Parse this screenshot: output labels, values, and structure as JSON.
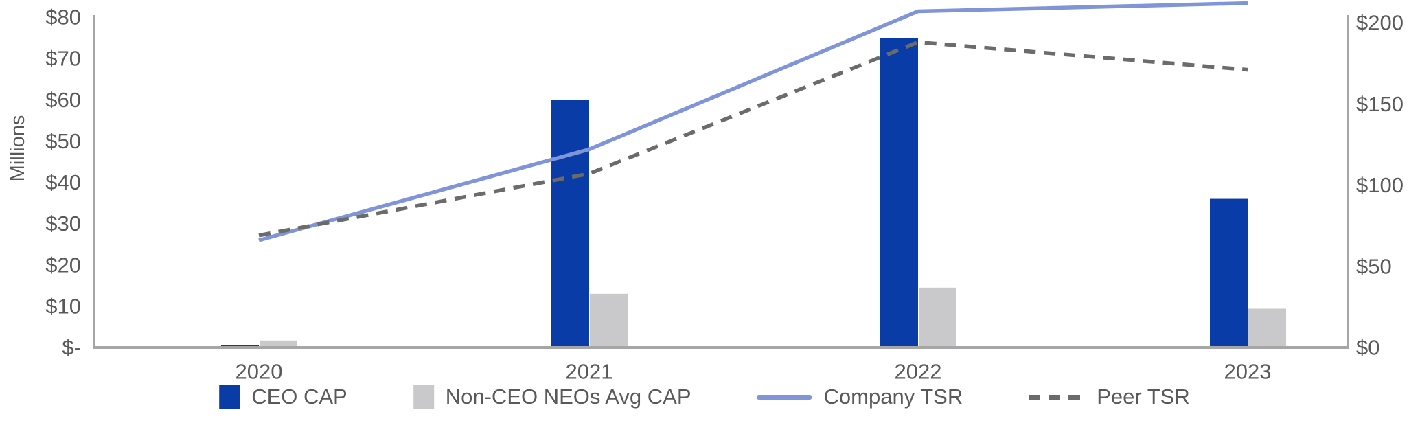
{
  "colors": {
    "ceo_bar": "#0A3CA8",
    "neo_bar": "#C9C9CB",
    "company_line": "#8094D8",
    "peer_line": "#6B6B6B",
    "axis": "#A6A6A6",
    "text": "#595959"
  },
  "chart_data": {
    "type": "combo-bar-line",
    "title": "",
    "categories": [
      "2020",
      "2021",
      "2022",
      "2023"
    ],
    "bar_series": [
      {
        "name": "CEO CAP",
        "axis": "left",
        "values": [
          0.5,
          60,
          75,
          36
        ]
      },
      {
        "name": "Non-CEO NEOs Avg CAP",
        "axis": "left",
        "values": [
          1.7,
          13,
          14.5,
          9.4
        ]
      }
    ],
    "line_series": [
      {
        "name": "Company TSR",
        "axis": "right",
        "style": "solid",
        "values": [
          66,
          122,
          207,
          212
        ]
      },
      {
        "name": "Peer TSR",
        "axis": "right",
        "style": "dashed",
        "values": [
          69,
          107,
          188,
          171
        ]
      }
    ],
    "left_axis": {
      "title": "Millions",
      "min": 0,
      "max": 80,
      "tick_step": 10,
      "tick_labels": [
        "$80",
        "$70",
        "$60",
        "$50",
        "$40",
        "$30",
        "$20",
        "$10",
        "$-"
      ]
    },
    "right_axis": {
      "min": 0,
      "max": 200,
      "tick_step": 50,
      "tick_labels": [
        "$200",
        "$150",
        "$100",
        "$50",
        "$0"
      ]
    },
    "grid": false,
    "legend_position": "bottom"
  }
}
